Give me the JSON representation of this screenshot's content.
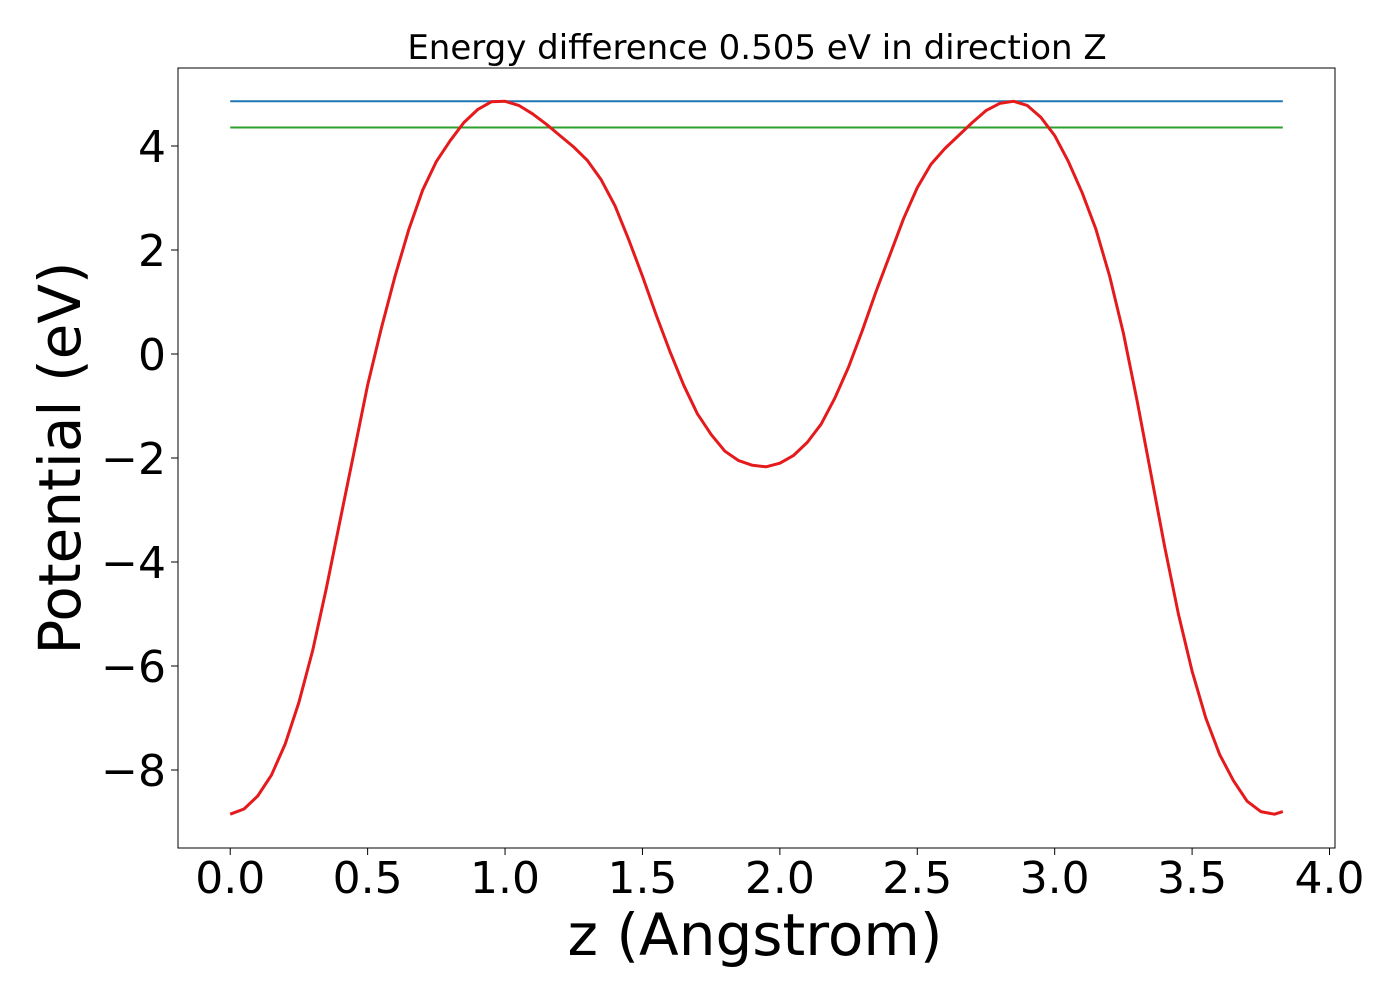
{
  "chart_data": {
    "type": "line",
    "title": "Energy difference 0.505 eV in direction Z",
    "xlabel": "z (Angstrom)",
    "ylabel": "Potential (eV)",
    "xlim": [
      -0.19,
      4.02
    ],
    "ylim": [
      -9.5,
      5.5
    ],
    "xticks": [
      0.0,
      0.5,
      1.0,
      1.5,
      2.0,
      2.5,
      3.0,
      3.5,
      4.0
    ],
    "xtick_labels": [
      "0.0",
      "0.5",
      "1.0",
      "1.5",
      "2.0",
      "2.5",
      "3.0",
      "3.5",
      "4.0"
    ],
    "yticks": [
      4,
      2,
      0,
      -2,
      -4,
      -6,
      -8
    ],
    "ytick_labels": [
      "4",
      "2",
      "0",
      "−2",
      "−4",
      "−6",
      "−8"
    ],
    "grid": false,
    "hlines": [
      {
        "y": 4.86,
        "x": [
          0.0,
          3.83
        ],
        "color": "#1f77b4"
      },
      {
        "y": 4.355,
        "x": [
          0.0,
          3.83
        ],
        "color": "#2ca02c"
      }
    ],
    "series": [
      {
        "color": "#e41a1c",
        "x": [
          0.0,
          0.05,
          0.1,
          0.15,
          0.2,
          0.25,
          0.3,
          0.35,
          0.4,
          0.45,
          0.5,
          0.55,
          0.6,
          0.65,
          0.7,
          0.75,
          0.8,
          0.85,
          0.9,
          0.95,
          1.0,
          1.05,
          1.1,
          1.15,
          1.2,
          1.25,
          1.3,
          1.35,
          1.4,
          1.45,
          1.5,
          1.55,
          1.6,
          1.65,
          1.7,
          1.75,
          1.8,
          1.85,
          1.9,
          1.95,
          2.0,
          2.05,
          2.1,
          2.15,
          2.2,
          2.25,
          2.3,
          2.35,
          2.4,
          2.45,
          2.5,
          2.55,
          2.6,
          2.65,
          2.7,
          2.75,
          2.8,
          2.85,
          2.9,
          2.95,
          3.0,
          3.05,
          3.1,
          3.15,
          3.2,
          3.25,
          3.3,
          3.35,
          3.4,
          3.45,
          3.5,
          3.55,
          3.6,
          3.65,
          3.7,
          3.75,
          3.8,
          3.83
        ],
        "y": [
          -8.85,
          -8.75,
          -8.5,
          -8.1,
          -7.5,
          -6.7,
          -5.7,
          -4.5,
          -3.2,
          -1.9,
          -0.6,
          0.5,
          1.5,
          2.4,
          3.15,
          3.7,
          4.1,
          4.45,
          4.7,
          4.85,
          4.86,
          4.78,
          4.62,
          4.42,
          4.2,
          3.98,
          3.72,
          3.35,
          2.85,
          2.2,
          1.5,
          0.75,
          0.05,
          -0.6,
          -1.15,
          -1.55,
          -1.87,
          -2.05,
          -2.14,
          -2.17,
          -2.1,
          -1.95,
          -1.7,
          -1.35,
          -0.85,
          -0.25,
          0.45,
          1.2,
          1.9,
          2.6,
          3.2,
          3.65,
          3.95,
          4.2,
          4.45,
          4.68,
          4.82,
          4.86,
          4.78,
          4.55,
          4.2,
          3.7,
          3.1,
          2.4,
          1.5,
          0.4,
          -0.9,
          -2.3,
          -3.7,
          -5.0,
          -6.1,
          -7.0,
          -7.7,
          -8.2,
          -8.6,
          -8.8,
          -8.85,
          -8.8
        ]
      }
    ]
  }
}
